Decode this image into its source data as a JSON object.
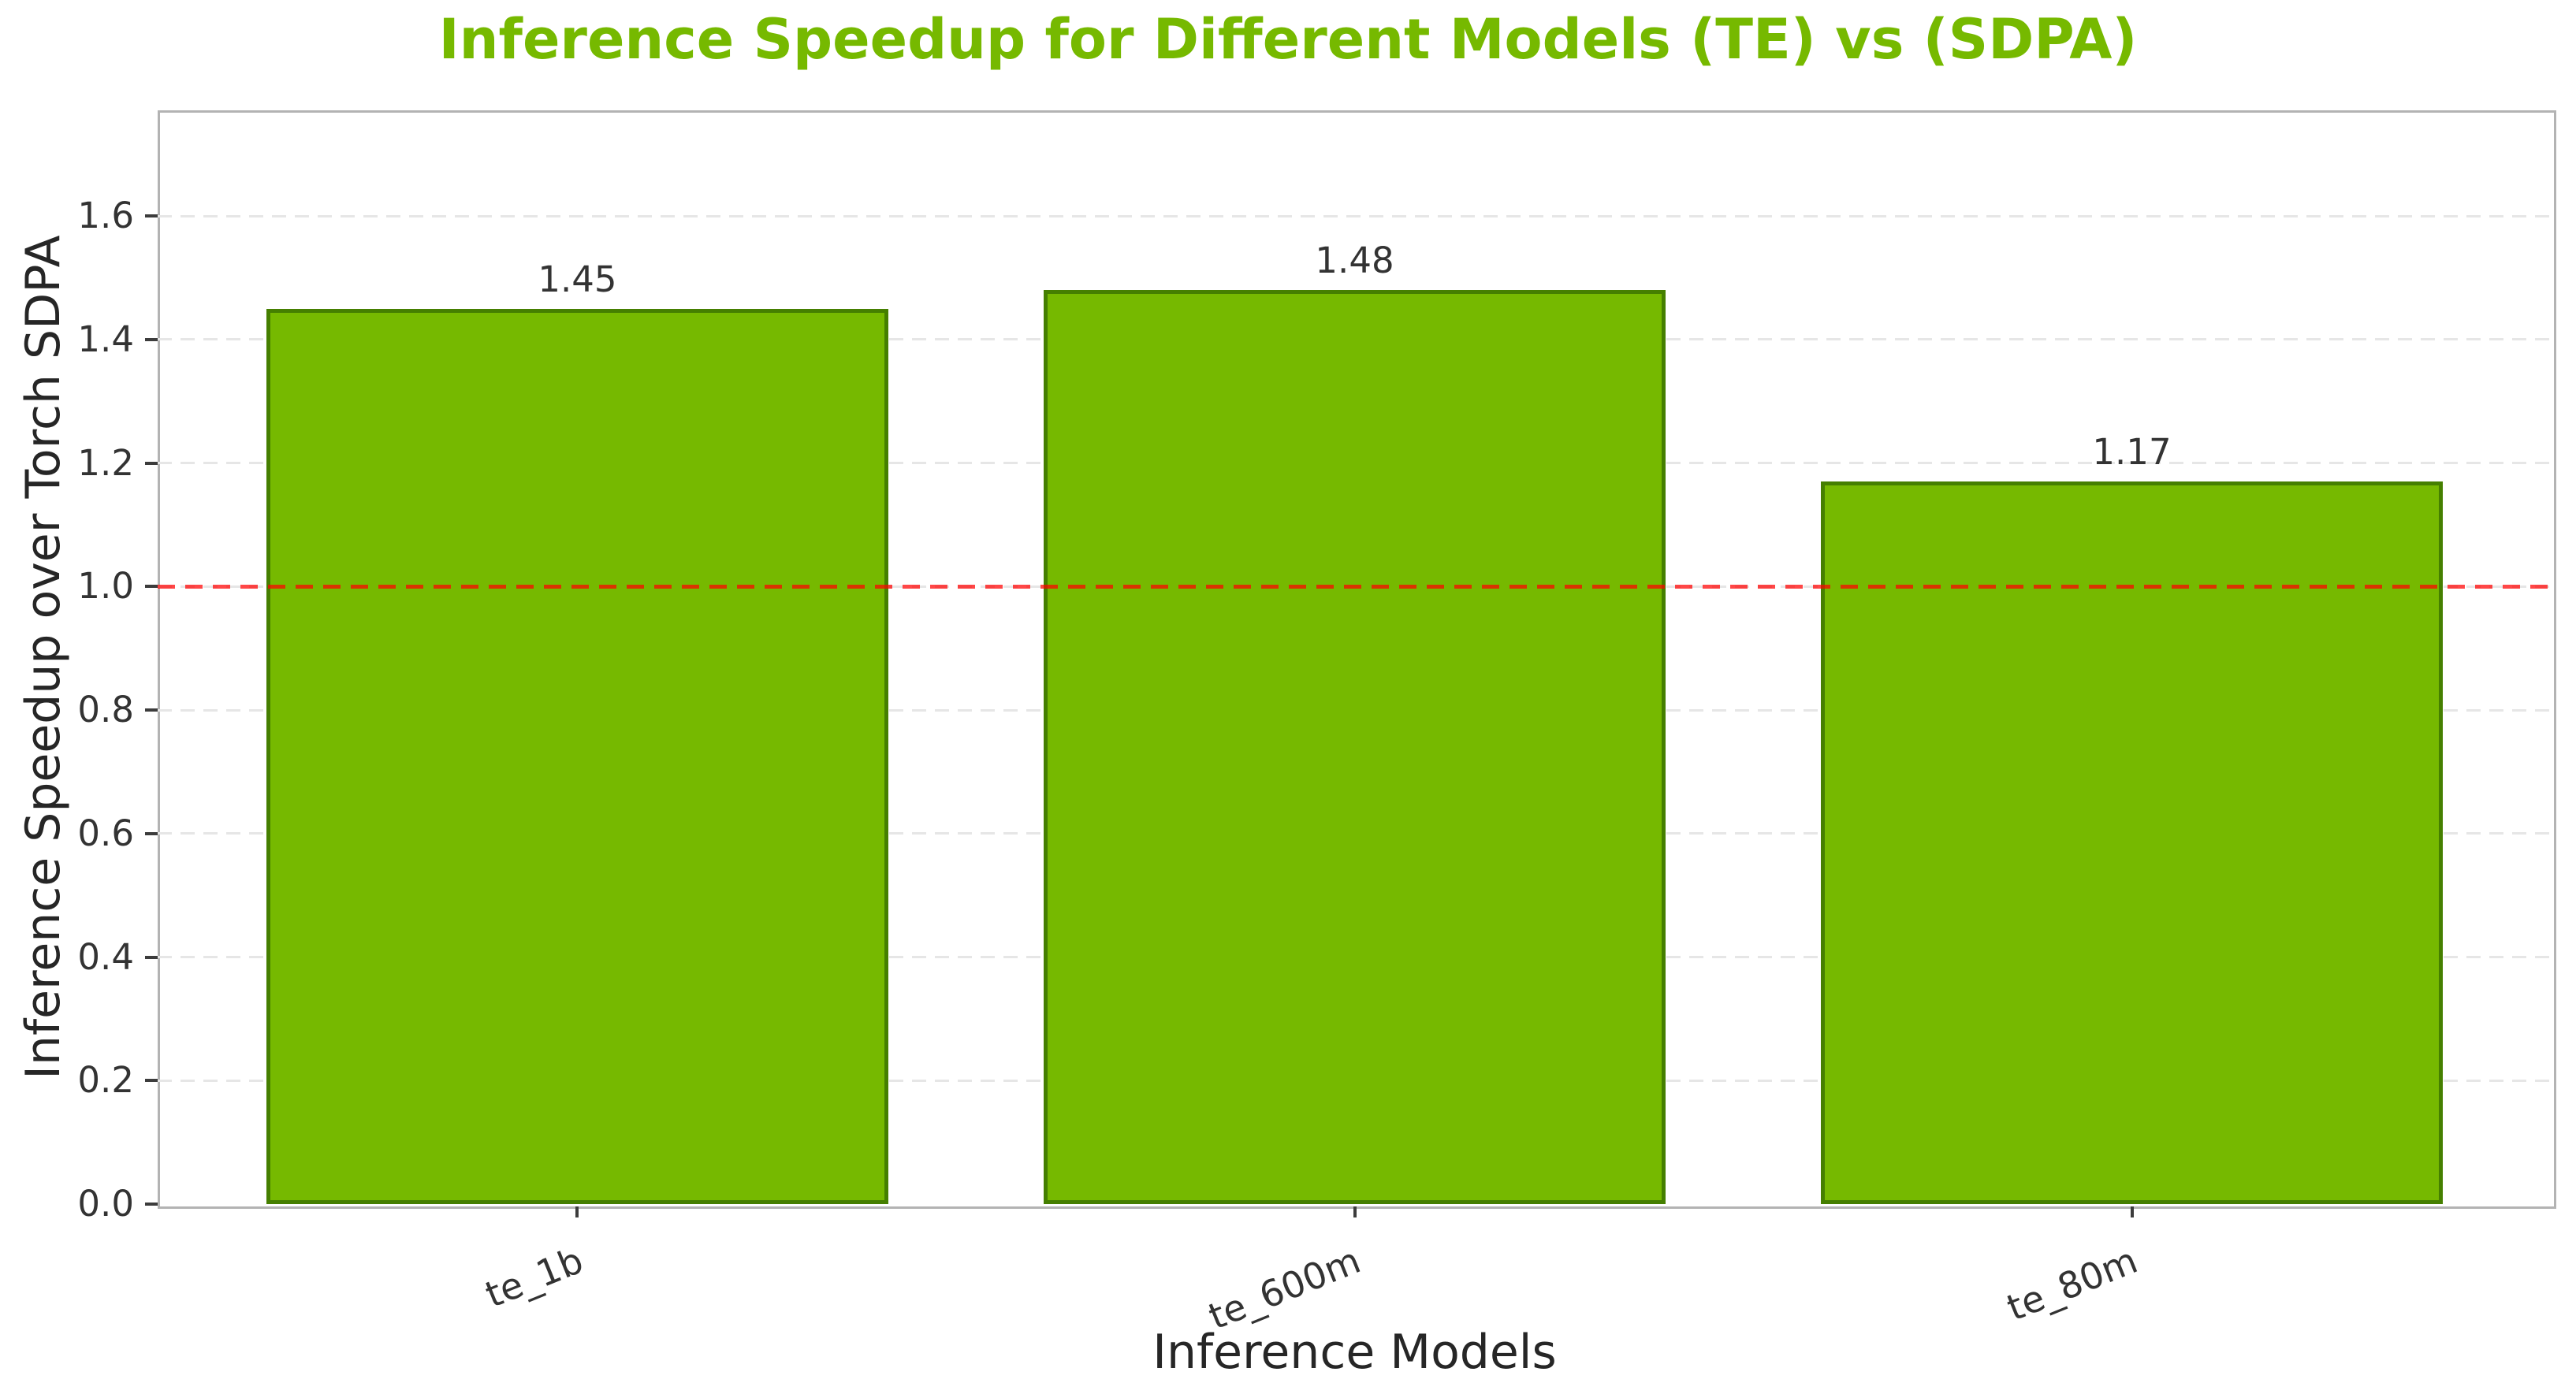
{
  "figure": {
    "title": "Inference Speedup for Different Models (TE) vs (SDPA)"
  },
  "chart_data": {
    "type": "bar",
    "title": "Inference Speedup for Different Models (TE) vs (SDPA)",
    "categories": [
      "te_1b",
      "te_600m",
      "te_80m"
    ],
    "values": [
      1.45,
      1.48,
      1.17
    ],
    "bar_value_labels": [
      "1.45",
      "1.48",
      "1.17"
    ],
    "xlabel": "Inference Models",
    "ylabel": "Inference Speedup over Torch SDPA",
    "ylim": [
      0,
      1.771
    ],
    "xlim": [
      -0.54,
      2.54
    ],
    "bar_width": 0.8,
    "ytick_values": [
      0.0,
      0.2,
      0.4,
      0.6,
      0.8,
      1.0,
      1.2,
      1.4,
      1.6
    ],
    "ytick_labels": [
      "0.0",
      "0.2",
      "0.4",
      "0.6",
      "0.8",
      "1.0",
      "1.2",
      "1.4",
      "1.6"
    ],
    "xtick_rotation_deg": -22,
    "grid": true,
    "legend": null,
    "reference_line": {
      "value": 1.0,
      "style": "dashed",
      "color": "rgba(255,0,0,0.72)"
    },
    "colors": {
      "title_text": "#76B900",
      "bar_fill": "#76B900",
      "bar_edge": "#457f00",
      "grid": "#e6e6e6",
      "spine": "#b3b3b3",
      "tick_mark": "#3c3c3c",
      "tick_text": "#333333",
      "label_text": "#262626"
    }
  }
}
